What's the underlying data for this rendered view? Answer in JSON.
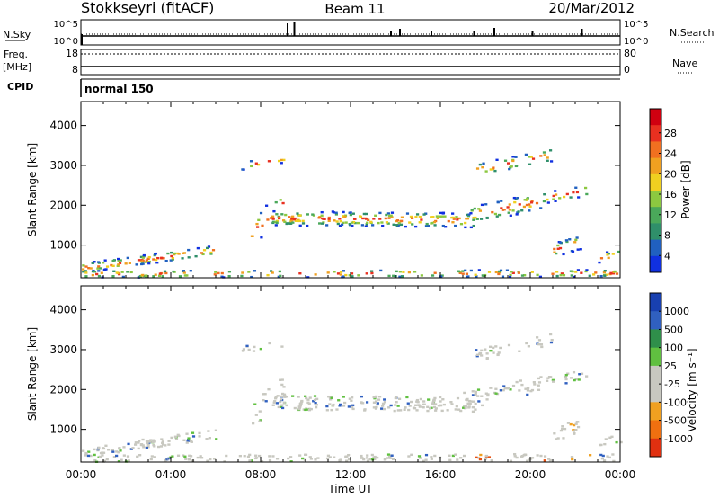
{
  "header": {
    "station": "Stokkseyri (fitACF)",
    "beam": "Beam 11",
    "date": "20/Mar/2012"
  },
  "left_labels": {
    "nsky": "N.Sky",
    "freq_top": "Freq.",
    "freq_unit": "[MHz]",
    "cpid": "CPID"
  },
  "right_labels": {
    "nsearch": "N.Search",
    "nave": "Nave"
  },
  "cpid_text": "normal 150",
  "strip_ticks": {
    "noise_left": [
      "10^5",
      "10^0"
    ],
    "noise_right": [
      "10^5",
      "10^0"
    ],
    "freq_left": [
      "18",
      "8"
    ],
    "nave_right": [
      "80",
      "0"
    ]
  },
  "chart_data": [
    {
      "type": "heatmap",
      "name": "power",
      "xlabel": "Time UT",
      "ylabel": "Slant Range [km]",
      "x_ticks": [
        "00:00",
        "04:00",
        "08:00",
        "12:00",
        "16:00",
        "20:00",
        "00:00"
      ],
      "y_ticks": [
        "1000",
        "2000",
        "3000",
        "4000"
      ],
      "colorbar": {
        "label": "Power [dB]",
        "ticks": [
          "4",
          "8",
          "12",
          "16",
          "20",
          "24",
          "28"
        ],
        "colors": [
          "#1030e0",
          "#2060c0",
          "#2f8f6a",
          "#4aa85a",
          "#8cc840",
          "#f0d020",
          "#f0a020",
          "#f07020",
          "#e83020",
          "#d00010"
        ]
      }
    },
    {
      "type": "heatmap",
      "name": "velocity",
      "xlabel": "Time UT",
      "ylabel": "Slant Range [km]",
      "x_ticks": [
        "00:00",
        "04:00",
        "08:00",
        "12:00",
        "16:00",
        "20:00",
        "00:00"
      ],
      "y_ticks": [
        "1000",
        "2000",
        "3000",
        "4000"
      ],
      "colorbar": {
        "label": "Velocity [m s⁻¹]",
        "ticks": [
          "1000",
          "500",
          "100",
          "25",
          "-25",
          "-100",
          "-500",
          "-1000"
        ],
        "colors": [
          "#1840b0",
          "#3060c0",
          "#2f8f4a",
          "#60c040",
          "#c8c8c0",
          "#c8c8c0",
          "#f0a020",
          "#f07010",
          "#e03010"
        ]
      }
    }
  ]
}
